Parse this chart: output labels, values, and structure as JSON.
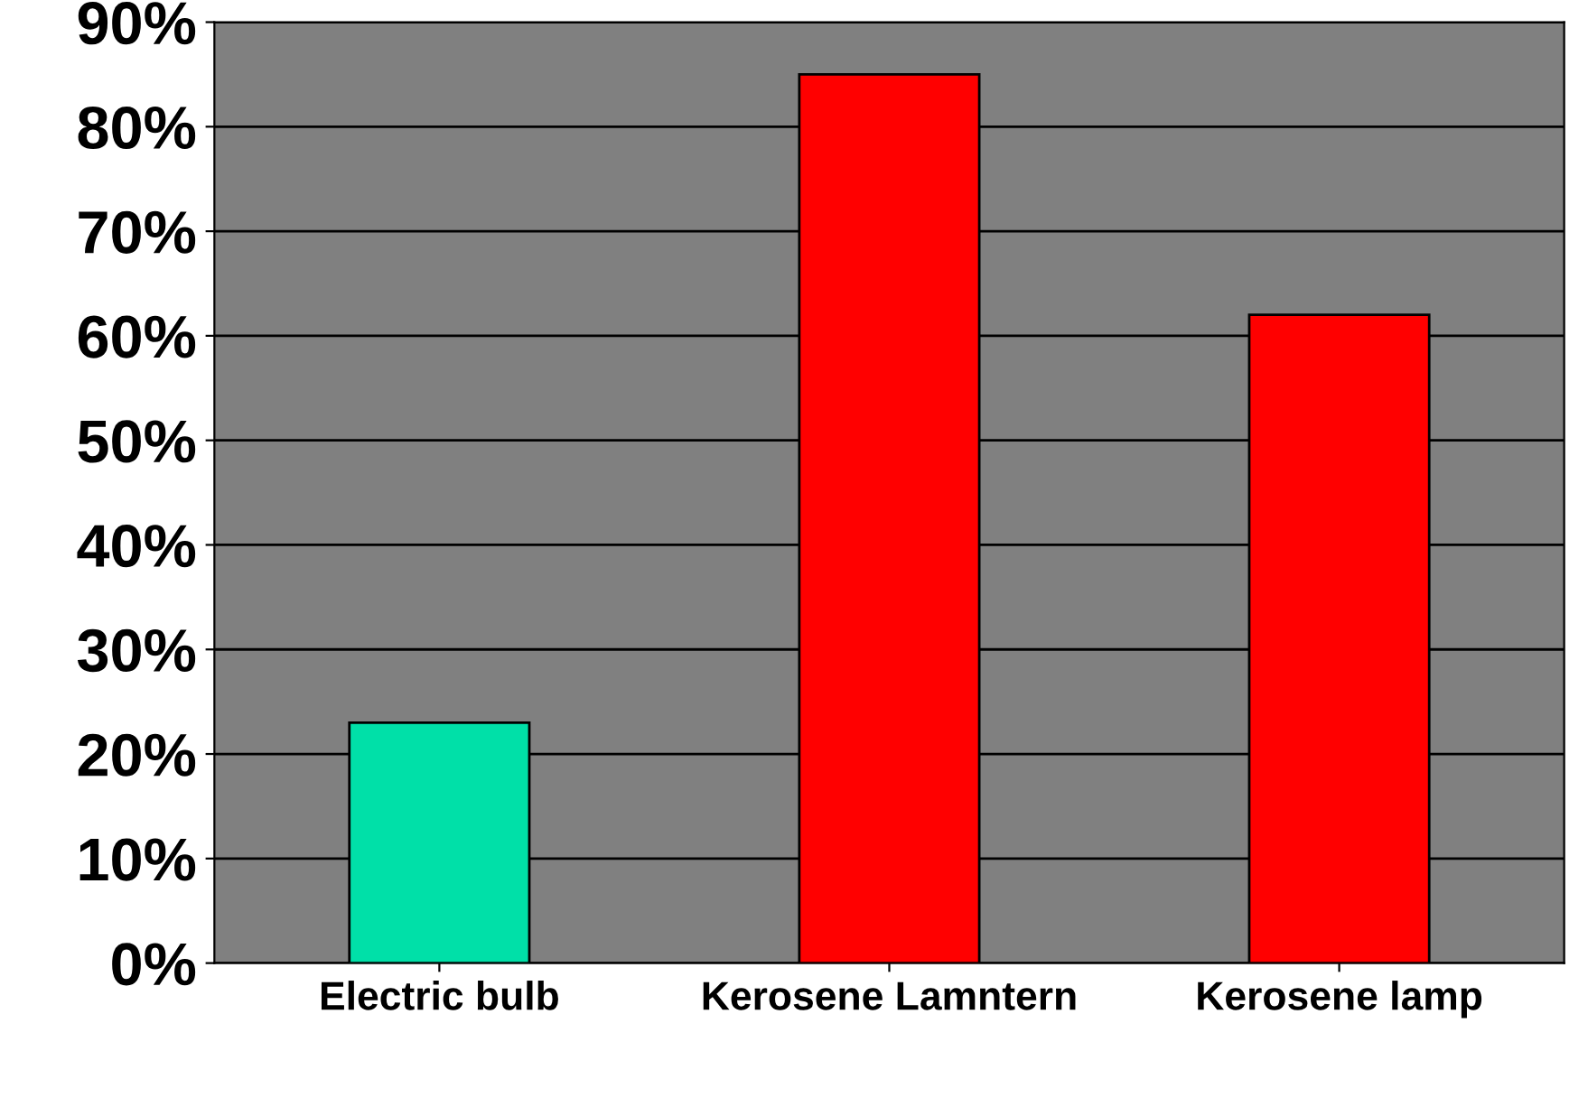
{
  "chart_data": {
    "type": "bar",
    "categories": [
      "Electric bulb",
      "Kerosene Lamntern",
      "Kerosene lamp"
    ],
    "values": [
      23,
      85,
      62
    ],
    "colors": [
      "#00e0a8",
      "#ff0000",
      "#ff0000"
    ],
    "ylim": [
      0,
      90
    ],
    "yticks": [
      {
        "value": 0,
        "label": "0%"
      },
      {
        "value": 10,
        "label": "10%"
      },
      {
        "value": 20,
        "label": "20%"
      },
      {
        "value": 30,
        "label": "30%"
      },
      {
        "value": 40,
        "label": "40%"
      },
      {
        "value": 50,
        "label": "50%"
      },
      {
        "value": 60,
        "label": "60%"
      },
      {
        "value": 70,
        "label": "70%"
      },
      {
        "value": 80,
        "label": "80%"
      },
      {
        "value": 90,
        "label": "90%"
      }
    ],
    "grid": "y"
  }
}
